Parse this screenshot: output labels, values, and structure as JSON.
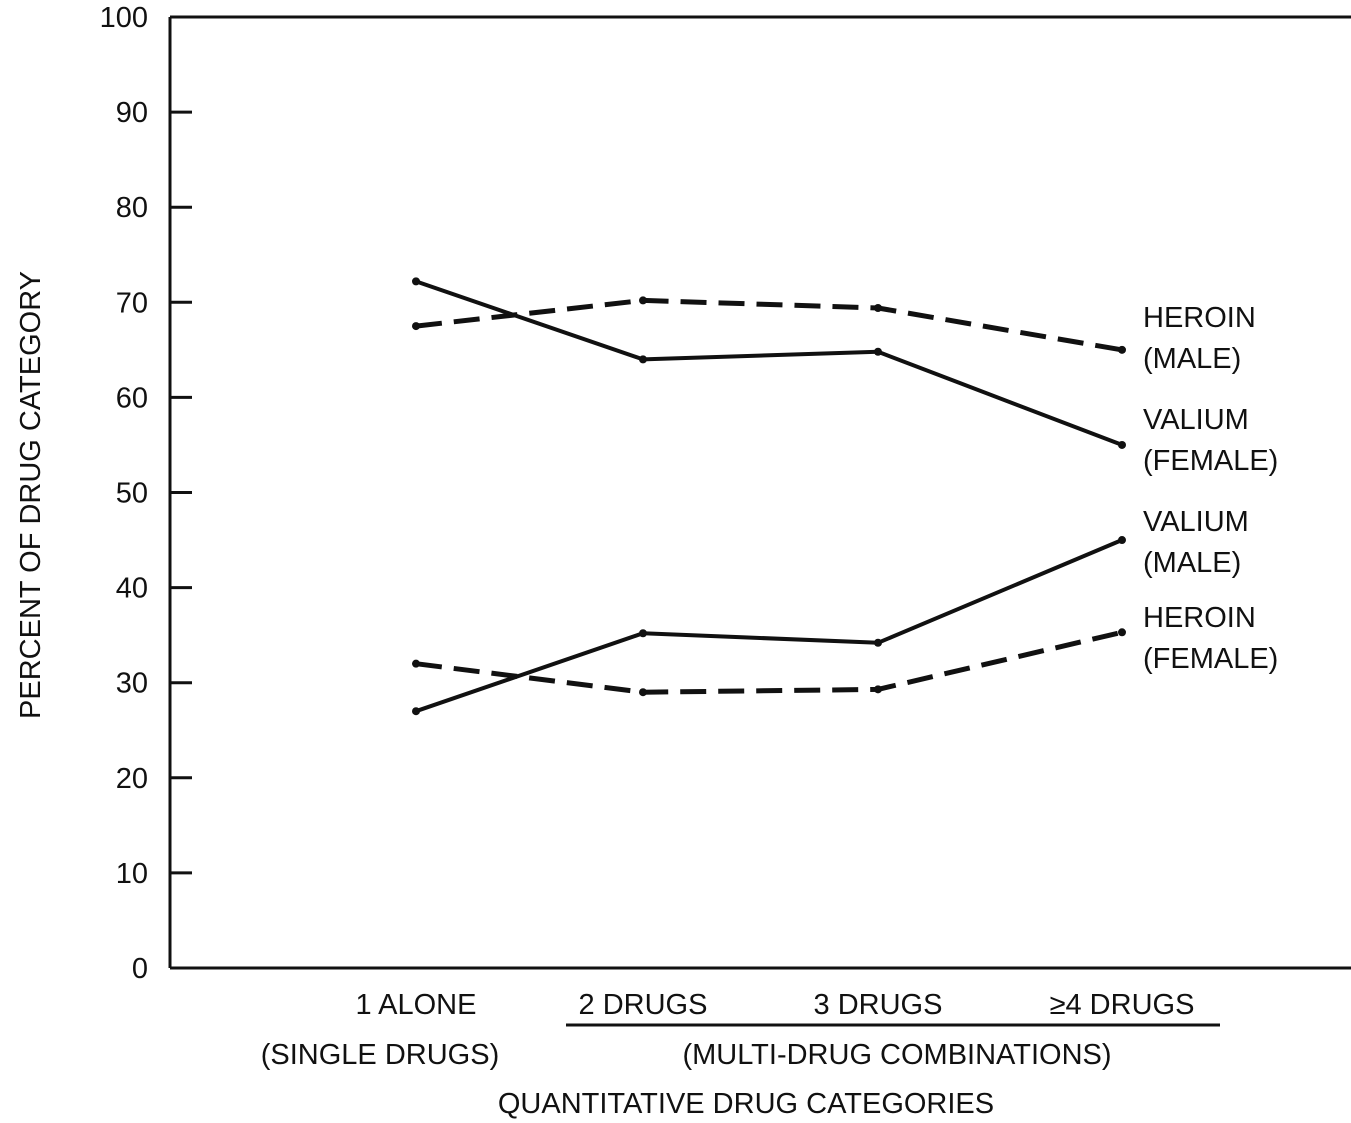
{
  "chart_data": {
    "type": "line",
    "title": "",
    "ylabel": "PERCENT OF DRUG CATEGORY",
    "xlabel": "QUANTITATIVE DRUG CATEGORIES",
    "ylim": [
      0,
      100
    ],
    "yticks": [
      "0",
      "10",
      "20",
      "30",
      "40",
      "50",
      "60",
      "70",
      "80",
      "90",
      "100"
    ],
    "categories": [
      "1 ALONE",
      "2 DRUGS",
      "3 DRUGS",
      "≥4 DRUGS"
    ],
    "category_groups": [
      {
        "label": "(SINGLE DRUGS)",
        "members": [
          "1 ALONE"
        ],
        "underlined": false
      },
      {
        "label": "(MULTI-DRUG COMBINATIONS)",
        "members": [
          "2 DRUGS",
          "3 DRUGS",
          "≥4 DRUGS"
        ],
        "underlined": true
      }
    ],
    "grid": false,
    "legend": "inline labels at right end of lines",
    "series": [
      {
        "name": [
          "HEROIN",
          "(MALE)"
        ],
        "style": "dashed",
        "values": [
          67.5,
          70.2,
          69.4,
          65.0
        ]
      },
      {
        "name": [
          "VALIUM",
          "(FEMALE)"
        ],
        "style": "solid",
        "values": [
          72.2,
          64.0,
          64.8,
          55.0
        ]
      },
      {
        "name": [
          "VALIUM",
          "(MALE)"
        ],
        "style": "solid",
        "values": [
          27.0,
          35.2,
          34.2,
          45.0
        ]
      },
      {
        "name": [
          "HEROIN",
          "(FEMALE)"
        ],
        "style": "dashed",
        "values": [
          32.0,
          29.0,
          29.3,
          35.3
        ]
      }
    ],
    "line_color": "#111111"
  }
}
